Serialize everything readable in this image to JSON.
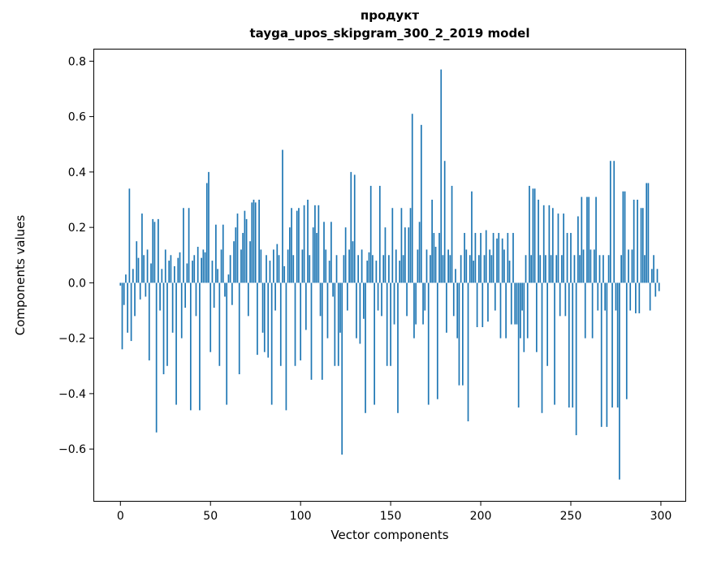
{
  "figure": {
    "title_line1": "продукт",
    "title_line2": "tayga_upos_skipgram_300_2_2019 model",
    "xlabel": "Vector components",
    "ylabel": "Components values"
  },
  "chart_data": {
    "type": "bar",
    "title": "продукт\ntayga_upos_skipgram_300_2_2019 model",
    "xlabel": "Vector components",
    "ylabel": "Components values",
    "legend": null,
    "grid": false,
    "bar_color": "#1f77b4",
    "axis_color": "#000000",
    "n_components": 300,
    "xlim": [
      -15,
      314
    ],
    "ylim": [
      -0.79,
      0.845
    ],
    "x_ticks": [
      0,
      50,
      100,
      150,
      200,
      250,
      300
    ],
    "x_tick_labels": [
      "0",
      "50",
      "100",
      "150",
      "200",
      "250",
      "300"
    ],
    "y_ticks": [
      0.8,
      0.6,
      0.4,
      0.2,
      0.0,
      -0.2,
      -0.4,
      -0.6
    ],
    "y_tick_labels": [
      "0.8",
      "0.6",
      "0.4",
      "0.2",
      "0.0",
      "−0.2",
      "−0.4",
      "−0.6"
    ],
    "values": [
      -0.01,
      -0.24,
      -0.08,
      0.03,
      -0.18,
      0.34,
      -0.21,
      0.05,
      -0.12,
      0.15,
      0.09,
      -0.06,
      0.25,
      0.1,
      -0.05,
      0.12,
      -0.28,
      0.07,
      0.23,
      0.22,
      -0.54,
      0.23,
      -0.1,
      0.05,
      -0.33,
      0.12,
      -0.3,
      0.08,
      0.1,
      -0.18,
      0.06,
      -0.44,
      0.09,
      0.11,
      -0.2,
      0.27,
      -0.09,
      0.07,
      0.27,
      -0.46,
      0.08,
      0.1,
      -0.12,
      0.13,
      -0.46,
      0.09,
      0.12,
      0.11,
      0.36,
      0.4,
      -0.25,
      0.08,
      -0.09,
      0.21,
      0.05,
      -0.3,
      0.12,
      0.21,
      -0.05,
      -0.44,
      0.03,
      0.1,
      -0.08,
      0.15,
      0.2,
      0.25,
      -0.33,
      0.12,
      0.18,
      0.26,
      0.23,
      -0.12,
      0.15,
      0.29,
      0.3,
      0.29,
      -0.26,
      0.3,
      0.12,
      -0.18,
      -0.25,
      0.1,
      -0.27,
      0.08,
      -0.44,
      0.12,
      -0.1,
      0.14,
      0.1,
      -0.3,
      0.48,
      0.06,
      -0.46,
      0.12,
      0.2,
      0.27,
      0.1,
      -0.3,
      0.26,
      0.27,
      -0.28,
      0.12,
      0.28,
      -0.17,
      0.3,
      0.1,
      -0.35,
      0.2,
      0.28,
      0.18,
      0.28,
      -0.12,
      -0.35,
      0.22,
      0.12,
      -0.2,
      0.08,
      0.22,
      -0.05,
      -0.3,
      0.1,
      -0.3,
      -0.18,
      -0.62,
      0.1,
      0.2,
      -0.1,
      0.12,
      0.4,
      0.15,
      0.39,
      -0.2,
      0.1,
      -0.22,
      0.12,
      -0.13,
      -0.47,
      0.08,
      0.11,
      0.35,
      0.1,
      -0.44,
      0.08,
      -0.1,
      0.35,
      -0.12,
      0.1,
      0.2,
      -0.3,
      0.1,
      -0.3,
      0.27,
      -0.15,
      0.12,
      -0.47,
      0.08,
      0.27,
      0.1,
      0.2,
      -0.12,
      0.2,
      0.27,
      0.61,
      -0.2,
      -0.15,
      0.12,
      0.22,
      0.57,
      -0.15,
      -0.1,
      0.12,
      -0.44,
      0.1,
      0.3,
      0.18,
      0.13,
      -0.42,
      0.18,
      0.77,
      0.1,
      0.44,
      -0.18,
      0.12,
      0.1,
      0.35,
      -0.12,
      0.05,
      -0.2,
      -0.37,
      0.1,
      -0.37,
      0.18,
      0.12,
      -0.5,
      0.1,
      0.33,
      0.08,
      0.18,
      -0.16,
      0.1,
      0.18,
      -0.16,
      0.1,
      0.19,
      -0.14,
      0.12,
      0.1,
      0.18,
      -0.1,
      0.16,
      0.18,
      -0.2,
      0.16,
      0.12,
      -0.2,
      0.18,
      0.08,
      -0.15,
      0.18,
      -0.15,
      -0.15,
      -0.45,
      -0.2,
      -0.1,
      -0.25,
      0.1,
      -0.2,
      0.35,
      0.1,
      0.34,
      0.34,
      -0.25,
      0.3,
      0.1,
      -0.47,
      0.28,
      0.1,
      -0.3,
      0.28,
      0.1,
      0.27,
      -0.44,
      0.1,
      0.25,
      -0.12,
      0.1,
      0.25,
      -0.12,
      0.18,
      -0.45,
      0.18,
      -0.45,
      0.1,
      -0.55,
      0.24,
      0.1,
      0.31,
      0.12,
      -0.2,
      0.31,
      0.31,
      0.12,
      -0.2,
      0.12,
      0.31,
      -0.1,
      0.1,
      -0.52,
      0.1,
      -0.1,
      -0.52,
      0.1,
      0.44,
      -0.45,
      0.44,
      -0.1,
      -0.45,
      -0.71,
      0.1,
      0.33,
      0.33,
      -0.42,
      0.12,
      -0.1,
      0.12,
      0.3,
      -0.11,
      0.3,
      -0.11,
      0.27,
      0.27,
      0.1,
      0.36,
      0.36,
      -0.1,
      0.05,
      0.1,
      -0.05,
      0.05,
      -0.03
    ]
  }
}
